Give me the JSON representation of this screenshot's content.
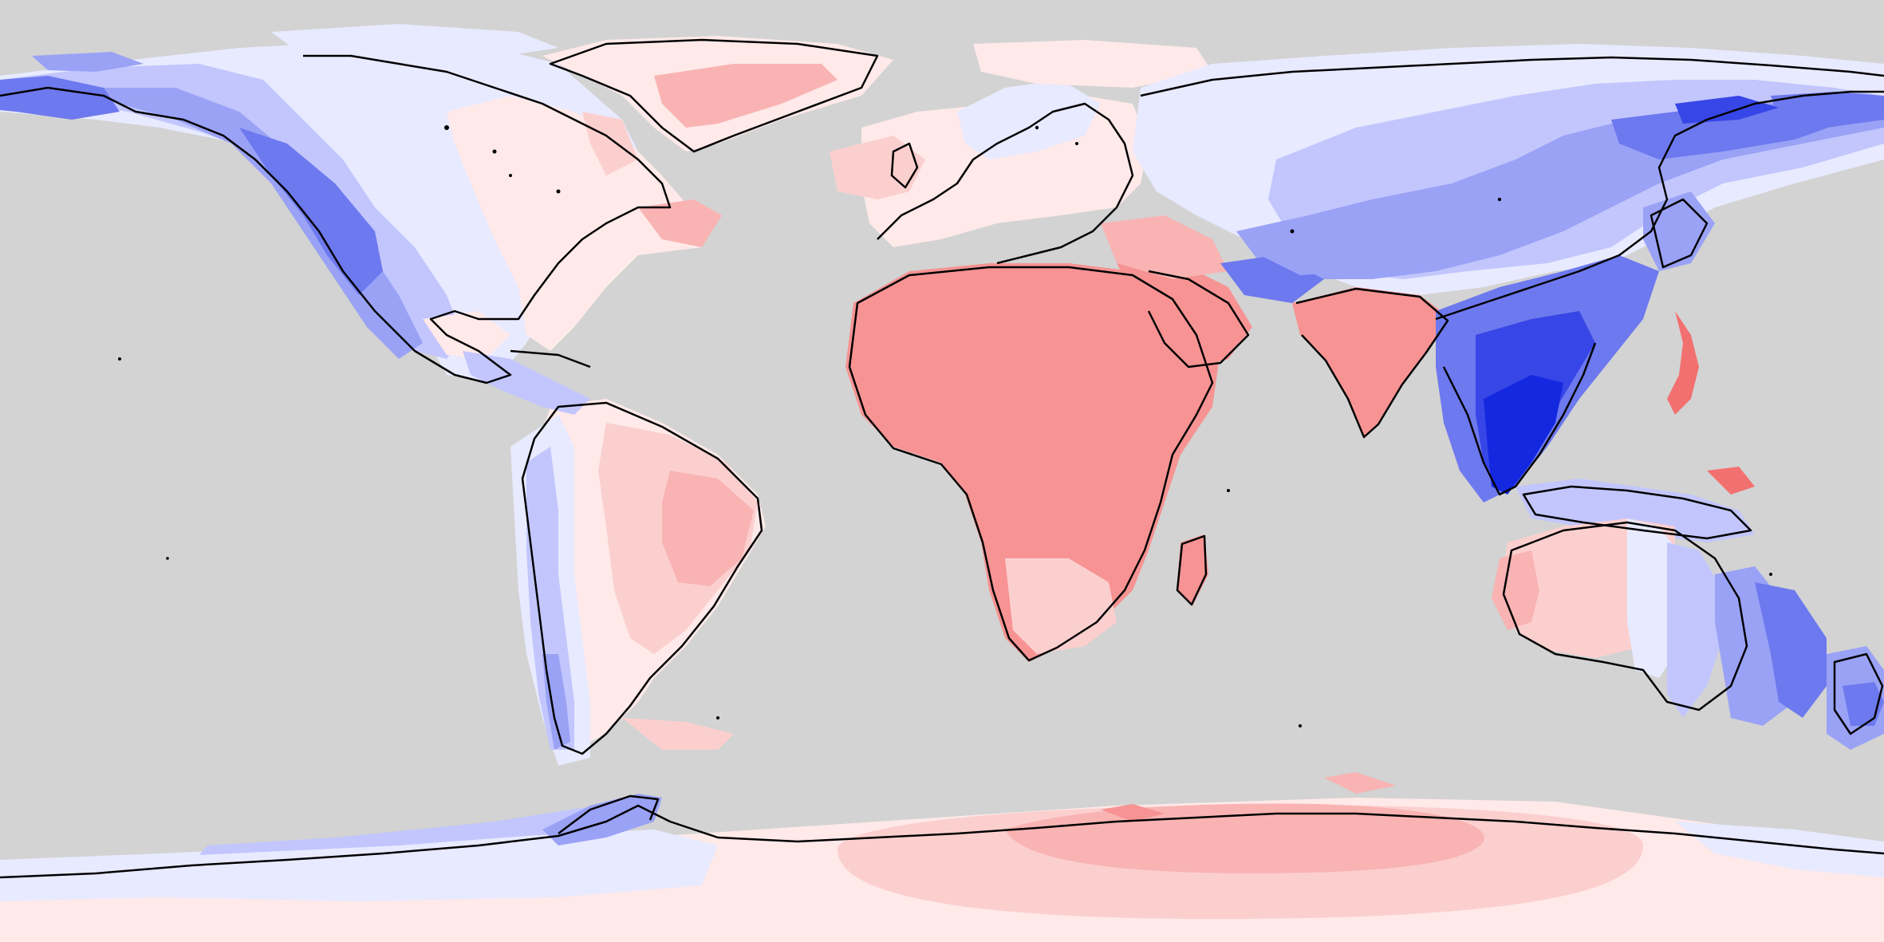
{
  "map": {
    "projection": "equirectangular",
    "extent": {
      "lon": [
        -180,
        180
      ],
      "lat": [
        -90,
        90
      ]
    },
    "colors": {
      "background": "#d3d3d3",
      "coastline": "#000000",
      "neg_1": "#e8eaff",
      "neg_2": "#c2c6fd",
      "neg_3": "#9aa2f6",
      "neg_4": "#6d79ee",
      "neg_5": "#3746e6",
      "neg_6": "#1428e0",
      "pos_1": "#ffe9e9",
      "pos_2": "#fccfcf",
      "pos_3": "#f9b3b3",
      "pos_4": "#f79393",
      "pos_5": "#f37070"
    },
    "field_description_free": true
  }
}
